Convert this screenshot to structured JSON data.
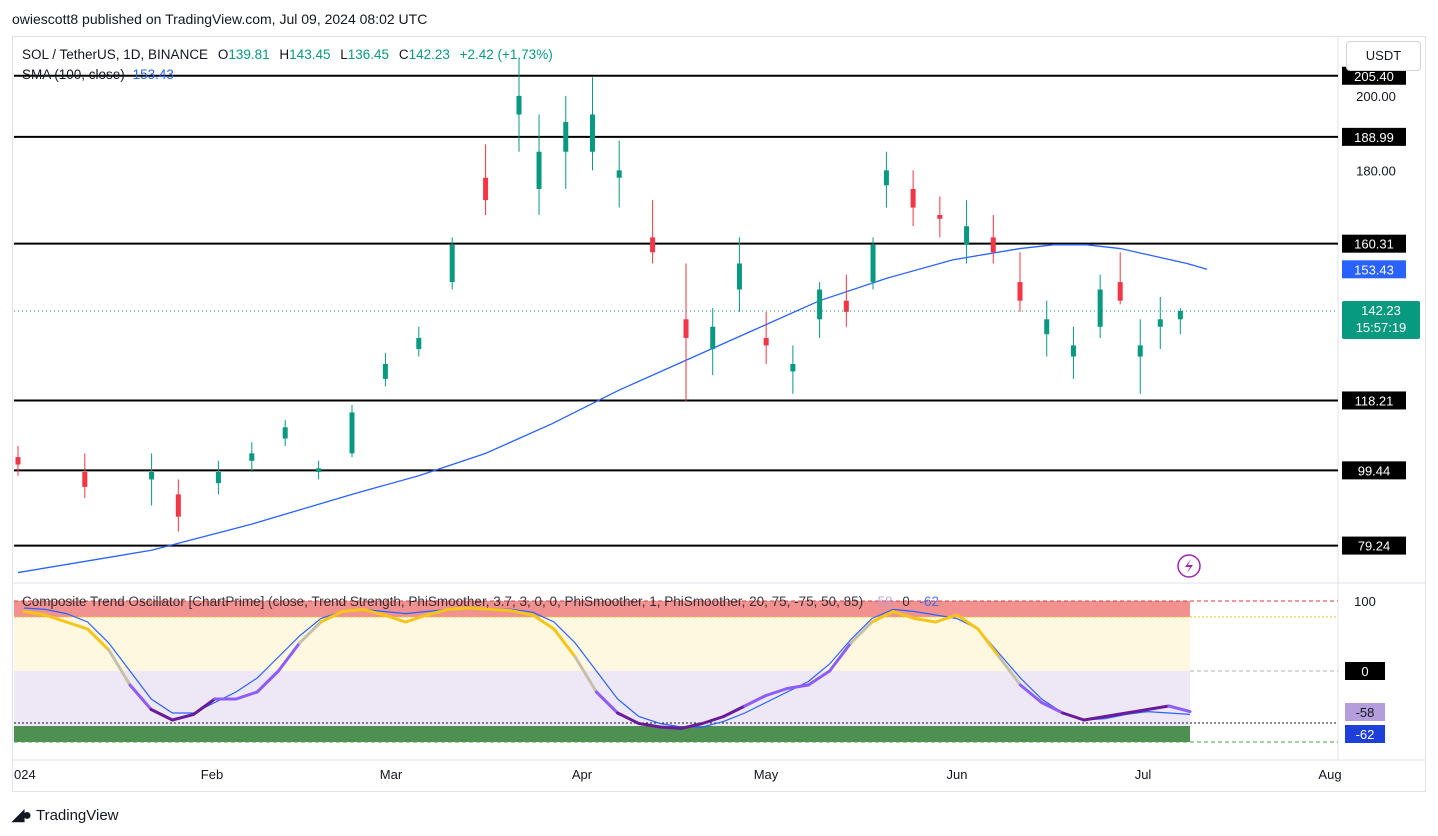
{
  "header": {
    "publish_line": "owiescott8 published on TradingView.com, Jul 09, 2024 08:02 UTC"
  },
  "legend": {
    "symbol": "SOL / TetherUS, 1D, BINANCE",
    "o_label": "O",
    "o_value": "139.81",
    "h_label": "H",
    "h_value": "143.45",
    "l_label": "L",
    "l_value": "136.45",
    "c_label": "C",
    "c_value": "142.23",
    "change": "+2.42 (+1.73%)",
    "sma_label": "SMA (100, close)",
    "sma_value": "153.43"
  },
  "toolbar": {
    "currency": "USDT"
  },
  "oscillator": {
    "title": "Composite Trend Oscillator [ChartPrime] (close, Trend Strength, PhiSmoother, 3.7, 3, 0, 0, PhiSmoother, 1, PhiSmoother, 20, 75, -75, 50, 85)",
    "v1": "-58",
    "v2": "0",
    "v3": "-62"
  },
  "footer": {
    "brand": "TradingView"
  },
  "colors": {
    "up": "#089981",
    "down": "#f23645",
    "sma": "#2962ff",
    "price_label_bg": "#089981",
    "osc_fast": "#8e5cf7",
    "osc_slow": "#2962ff",
    "osc_gold": "#f5c518"
  },
  "chart_data": [
    {
      "type": "candlestick",
      "title": "SOL / TetherUS, 1D, BINANCE",
      "price_axis": {
        "ylim": [
          70,
          215
        ],
        "ticks": [
          "200.00",
          "180.00"
        ]
      },
      "time_axis": {
        "labels": [
          "2024",
          "Feb",
          "Mar",
          "Apr",
          "May",
          "Jun",
          "Jul",
          "Aug"
        ]
      },
      "horizontal_levels": [
        205.4,
        188.99,
        160.31,
        118.21,
        99.44,
        79.24
      ],
      "last_price": {
        "value": "142.23",
        "countdown": "15:57:19"
      },
      "sma_last": "153.43",
      "series": [
        {
          "name": "SMA (100, close)",
          "type": "line",
          "points": [
            [
              0,
              72
            ],
            [
              20,
              78
            ],
            [
              35,
              85
            ],
            [
              50,
              93
            ],
            [
              60,
              98
            ],
            [
              70,
              104
            ],
            [
              80,
              112
            ],
            [
              90,
              121
            ],
            [
              100,
              129
            ],
            [
              110,
              137
            ],
            [
              120,
              145
            ],
            [
              130,
              151
            ],
            [
              140,
              156
            ],
            [
              150,
              159
            ],
            [
              155,
              160
            ],
            [
              160,
              160
            ],
            [
              165,
              159
            ],
            [
              170,
              157
            ],
            [
              175,
              155
            ],
            [
              178,
              153.43
            ]
          ]
        }
      ],
      "candles_ohlc_sample": [
        [
          0,
          103,
          106,
          98,
          101
        ],
        [
          10,
          99,
          104,
          92,
          95
        ],
        [
          20,
          97,
          104,
          90,
          99
        ],
        [
          24,
          93,
          97,
          83,
          87
        ],
        [
          30,
          96,
          102,
          93,
          99
        ],
        [
          35,
          102,
          107,
          99,
          104
        ],
        [
          40,
          108,
          113,
          106,
          111
        ],
        [
          45,
          99,
          102,
          97,
          100
        ],
        [
          50,
          104,
          117,
          103,
          115
        ],
        [
          55,
          124,
          131,
          122,
          128
        ],
        [
          60,
          132,
          138,
          130,
          135
        ],
        [
          65,
          150,
          162,
          148,
          160
        ],
        [
          70,
          178,
          187,
          168,
          172
        ],
        [
          75,
          195,
          210,
          185,
          200
        ],
        [
          78,
          175,
          195,
          168,
          185
        ],
        [
          82,
          185,
          200,
          175,
          193
        ],
        [
          86,
          185,
          205,
          180,
          195
        ],
        [
          90,
          178,
          188,
          170,
          180
        ],
        [
          95,
          162,
          172,
          155,
          158
        ],
        [
          100,
          140,
          155,
          118,
          135
        ],
        [
          104,
          132,
          143,
          125,
          138
        ],
        [
          108,
          148,
          162,
          142,
          155
        ],
        [
          112,
          135,
          142,
          128,
          133
        ],
        [
          116,
          126,
          133,
          120,
          128
        ],
        [
          120,
          140,
          150,
          135,
          148
        ],
        [
          124,
          145,
          152,
          138,
          142
        ],
        [
          128,
          150,
          162,
          148,
          160
        ],
        [
          130,
          176,
          185,
          170,
          180
        ],
        [
          134,
          175,
          180,
          165,
          170
        ],
        [
          138,
          168,
          173,
          162,
          167
        ],
        [
          142,
          160,
          172,
          155,
          165
        ],
        [
          146,
          162,
          168,
          155,
          158
        ],
        [
          150,
          150,
          158,
          142,
          145
        ],
        [
          154,
          136,
          145,
          130,
          140
        ],
        [
          158,
          130,
          138,
          124,
          133
        ],
        [
          162,
          138,
          152,
          135,
          148
        ],
        [
          165,
          150,
          158,
          144,
          145
        ],
        [
          168,
          130,
          140,
          120,
          133
        ],
        [
          171,
          138,
          146,
          132,
          140
        ],
        [
          174,
          140,
          143,
          136,
          142.23
        ]
      ]
    },
    {
      "type": "line",
      "title": "Composite Trend Oscillator [ChartPrime]",
      "yaxis": {
        "labels": [
          "100",
          "0",
          "-58",
          "-62"
        ]
      },
      "series": [
        {
          "name": "PhiSmoother fast",
          "values": [
            85,
            80,
            70,
            60,
            30,
            -20,
            -55,
            -70,
            -62,
            -40,
            -40,
            -30,
            0,
            40,
            70,
            85,
            88,
            80,
            70,
            80,
            88,
            90,
            88,
            86,
            80,
            60,
            20,
            -30,
            -60,
            -75,
            -80,
            -82,
            -75,
            -65,
            -50,
            -35,
            -25,
            -20,
            0,
            40,
            70,
            85,
            75,
            70,
            80,
            60,
            20,
            -20,
            -45,
            -60,
            -70,
            -65,
            -60,
            -55,
            -50,
            -58
          ]
        },
        {
          "name": "PhiSmoother slow",
          "values": [
            90,
            88,
            82,
            70,
            40,
            0,
            -40,
            -60,
            -60,
            -45,
            -30,
            -10,
            20,
            50,
            75,
            85,
            88,
            85,
            82,
            85,
            88,
            90,
            89,
            88,
            84,
            70,
            40,
            0,
            -40,
            -65,
            -75,
            -80,
            -80,
            -72,
            -60,
            -45,
            -30,
            -15,
            10,
            45,
            75,
            88,
            85,
            80,
            75,
            60,
            25,
            -10,
            -40,
            -60,
            -70,
            -68,
            -62,
            -58,
            -60,
            -62
          ]
        }
      ]
    }
  ]
}
